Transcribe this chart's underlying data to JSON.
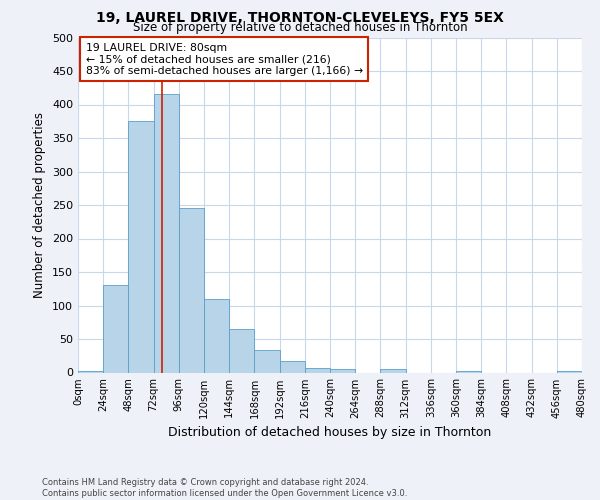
{
  "title": "19, LAUREL DRIVE, THORNTON-CLEVELEYS, FY5 5EX",
  "subtitle": "Size of property relative to detached houses in Thornton",
  "xlabel": "Distribution of detached houses by size in Thornton",
  "ylabel": "Number of detached properties",
  "bin_edges": [
    0,
    24,
    48,
    72,
    96,
    120,
    144,
    168,
    192,
    216,
    240,
    264,
    288,
    312,
    336,
    360,
    384,
    408,
    432,
    456,
    480
  ],
  "bar_heights": [
    2,
    130,
    375,
    415,
    246,
    110,
    65,
    33,
    17,
    7,
    5,
    0,
    5,
    0,
    0,
    2,
    0,
    0,
    0,
    2
  ],
  "bar_color": "#b8d4e8",
  "bar_edge_color": "#5b9ec9",
  "property_size": 80,
  "annotation_title": "19 LAUREL DRIVE: 80sqm",
  "annotation_line1": "← 15% of detached houses are smaller (216)",
  "annotation_line2": "83% of semi-detached houses are larger (1,166) →",
  "vline_color": "#cc2200",
  "annotation_box_edge_color": "#cc2200",
  "footer_line1": "Contains HM Land Registry data © Crown copyright and database right 2024.",
  "footer_line2": "Contains public sector information licensed under the Open Government Licence v3.0.",
  "tick_labels": [
    "0sqm",
    "24sqm",
    "48sqm",
    "72sqm",
    "96sqm",
    "120sqm",
    "144sqm",
    "168sqm",
    "192sqm",
    "216sqm",
    "240sqm",
    "264sqm",
    "288sqm",
    "312sqm",
    "336sqm",
    "360sqm",
    "384sqm",
    "408sqm",
    "432sqm",
    "456sqm",
    "480sqm"
  ],
  "ylim": [
    0,
    500
  ],
  "bg_color": "#eef2f8",
  "plot_bg_color": "#ffffff",
  "grid_color": "#c8d8ea",
  "yticks": [
    0,
    50,
    100,
    150,
    200,
    250,
    300,
    350,
    400,
    450,
    500
  ]
}
